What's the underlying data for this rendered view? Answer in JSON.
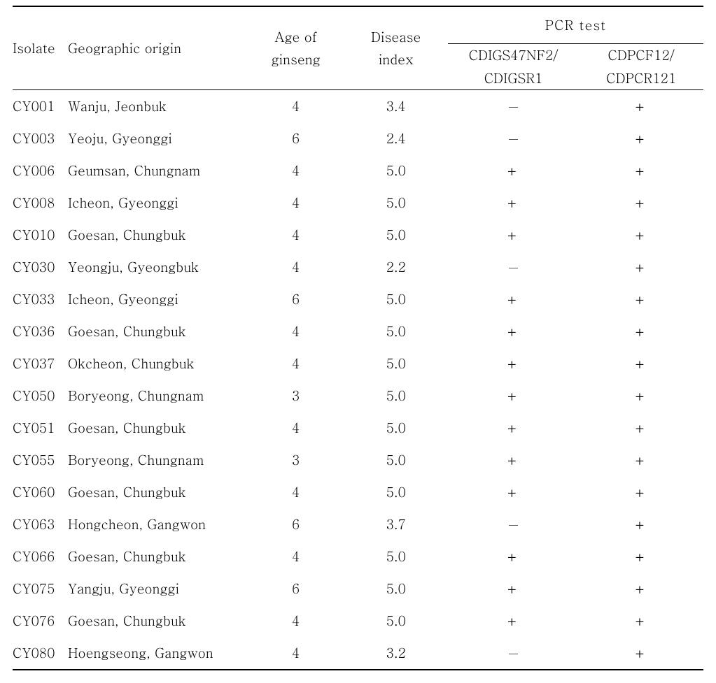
{
  "header": {
    "isolate": "Isolate",
    "geo": "Geographic origin",
    "age_l1": "Age of",
    "age_l2": "ginseng",
    "idx_l1": "Disease",
    "idx_l2": "index",
    "pcr_super": "PCR test",
    "pcr1_l1": "CDIGS47NF2/",
    "pcr1_l2": "CDIGSR1",
    "pcr2_l1": "CDPCF12/",
    "pcr2_l2": "CDPCR121"
  },
  "rows": [
    {
      "iso": "CY001",
      "geo": "Wanju, Jeonbuk",
      "age": "4",
      "idx": "3.4",
      "p1": "−",
      "p2": "+"
    },
    {
      "iso": "CY003",
      "geo": "Yeoju, Gyeonggi",
      "age": "6",
      "idx": "2.4",
      "p1": "−",
      "p2": "+"
    },
    {
      "iso": "CY006",
      "geo": "Geumsan, Chungnam",
      "age": "4",
      "idx": "5.0",
      "p1": "+",
      "p2": "+"
    },
    {
      "iso": "CY008",
      "geo": "Icheon, Gyeonggi",
      "age": "4",
      "idx": "5.0",
      "p1": "+",
      "p2": "+"
    },
    {
      "iso": "CY010",
      "geo": "Goesan, Chungbuk",
      "age": "4",
      "idx": "5.0",
      "p1": "+",
      "p2": "+"
    },
    {
      "iso": "CY030",
      "geo": "Yeongju, Gyeongbuk",
      "age": "4",
      "idx": "2.2",
      "p1": "−",
      "p2": "+"
    },
    {
      "iso": "CY033",
      "geo": "Icheon, Gyeonggi",
      "age": "6",
      "idx": "5.0",
      "p1": "+",
      "p2": "+"
    },
    {
      "iso": "CY036",
      "geo": "Goesan, Chungbuk",
      "age": "4",
      "idx": "5.0",
      "p1": "+",
      "p2": "+"
    },
    {
      "iso": "CY037",
      "geo": "Okcheon, Chungbuk",
      "age": "4",
      "idx": "5.0",
      "p1": "+",
      "p2": "+"
    },
    {
      "iso": "CY050",
      "geo": "Boryeong, Chungnam",
      "age": "3",
      "idx": "5.0",
      "p1": "+",
      "p2": "+"
    },
    {
      "iso": "CY051",
      "geo": "Goesan, Chungbuk",
      "age": "4",
      "idx": "5.0",
      "p1": "+",
      "p2": "+"
    },
    {
      "iso": "CY055",
      "geo": "Boryeong, Chungnam",
      "age": "3",
      "idx": "5.0",
      "p1": "+",
      "p2": "+"
    },
    {
      "iso": "CY060",
      "geo": "Goesan, Chungbuk",
      "age": "4",
      "idx": "5.0",
      "p1": "+",
      "p2": "+"
    },
    {
      "iso": "CY063",
      "geo": "Hongcheon, Gangwon",
      "age": "6",
      "idx": "3.7",
      "p1": "−",
      "p2": "+"
    },
    {
      "iso": "CY066",
      "geo": "Goesan, Chungbuk",
      "age": "4",
      "idx": "5.0",
      "p1": "+",
      "p2": "+"
    },
    {
      "iso": "CY075",
      "geo": "Yangju, Gyeonggi",
      "age": "6",
      "idx": "5.0",
      "p1": "+",
      "p2": "+"
    },
    {
      "iso": "CY076",
      "geo": "Goesan, Chungbuk",
      "age": "4",
      "idx": "5.0",
      "p1": "+",
      "p2": "+"
    },
    {
      "iso": "CY080",
      "geo": "Hoengseong, Gangwon",
      "age": "4",
      "idx": "3.2",
      "p1": "−",
      "p2": "+"
    }
  ]
}
